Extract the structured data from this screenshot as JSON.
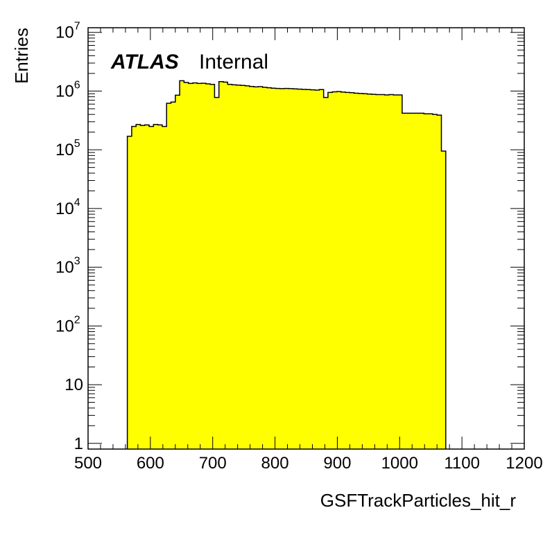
{
  "chart_data": {
    "type": "bar",
    "title": "",
    "xlabel": "GSFTrackParticles_hit_r",
    "ylabel": "Entries",
    "annotation": {
      "experiment": "ATLAS",
      "status": "Internal"
    },
    "x_scale": "linear",
    "y_scale": "log",
    "xlim": [
      500,
      1200
    ],
    "ylim": [
      0.8,
      12000000
    ],
    "grid": false,
    "fill_color": "#ffff00",
    "line_color": "#000000",
    "x_ticks": [
      "500",
      "600",
      "700",
      "800",
      "900",
      "1000",
      "1100",
      "1200"
    ],
    "y_ticks": [
      {
        "value": 1,
        "base": "1",
        "exp": ""
      },
      {
        "value": 10,
        "base": "10",
        "exp": ""
      },
      {
        "value": 100,
        "base": "10",
        "exp": "2"
      },
      {
        "value": 1000,
        "base": "10",
        "exp": "3"
      },
      {
        "value": 10000,
        "base": "10",
        "exp": "4"
      },
      {
        "value": 100000,
        "base": "10",
        "exp": "5"
      },
      {
        "value": 1000000,
        "base": "10",
        "exp": "6"
      },
      {
        "value": 10000000,
        "base": "10",
        "exp": "7"
      }
    ],
    "bin_width": 7,
    "bin_lows": [
      563,
      570,
      577,
      584,
      591,
      598,
      605,
      612,
      619,
      626,
      633,
      640,
      647,
      654,
      661,
      668,
      675,
      682,
      689,
      696,
      703,
      710,
      717,
      724,
      731,
      738,
      745,
      752,
      759,
      766,
      773,
      780,
      787,
      794,
      801,
      808,
      815,
      822,
      829,
      836,
      843,
      850,
      857,
      864,
      871,
      878,
      885,
      892,
      899,
      906,
      913,
      920,
      927,
      934,
      941,
      948,
      955,
      962,
      969,
      976,
      983,
      990,
      997,
      1004,
      1011,
      1018,
      1025,
      1032,
      1039,
      1046,
      1053,
      1060,
      1067
    ],
    "values": [
      170000,
      250000,
      270000,
      260000,
      265000,
      250000,
      270000,
      265000,
      250000,
      620000,
      650000,
      850000,
      1500000,
      1400000,
      1350000,
      1380000,
      1350000,
      1360000,
      1330000,
      1300000,
      780000,
      1450000,
      1420000,
      1300000,
      1280000,
      1260000,
      1250000,
      1230000,
      1200000,
      1180000,
      1190000,
      1160000,
      1140000,
      1120000,
      1110000,
      1100000,
      1110000,
      1100000,
      1090000,
      1080000,
      1070000,
      1060000,
      1050000,
      1040000,
      1060000,
      780000,
      950000,
      970000,
      980000,
      960000,
      950000,
      940000,
      920000,
      910000,
      900000,
      890000,
      880000,
      870000,
      870000,
      860000,
      870000,
      860000,
      860000,
      420000,
      420000,
      420000,
      420000,
      420000,
      410000,
      410000,
      400000,
      390000,
      95000
    ]
  }
}
